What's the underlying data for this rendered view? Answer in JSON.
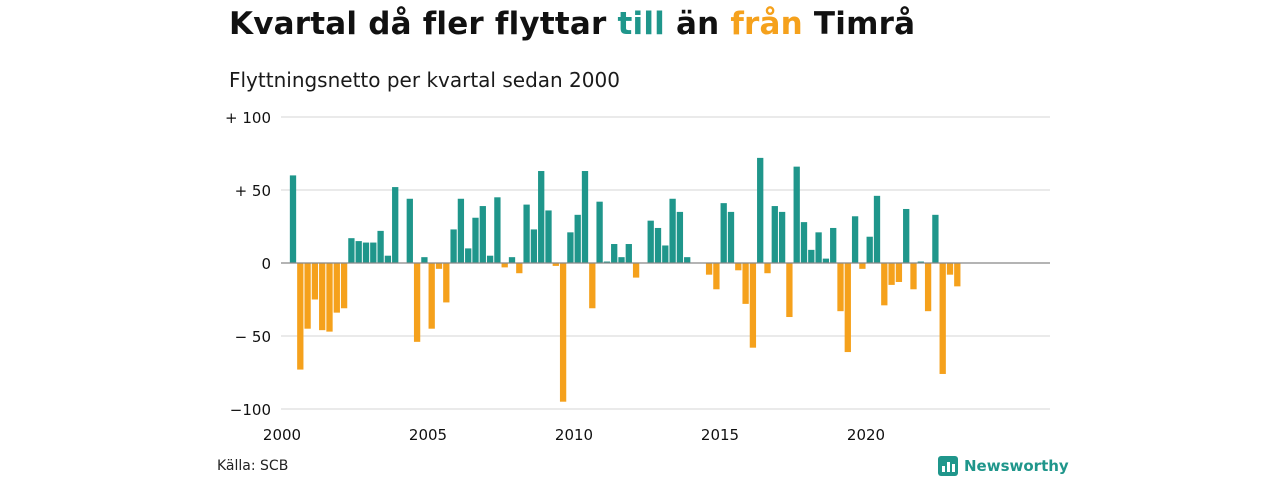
{
  "title": {
    "part1": "Kvartal då fler flyttar ",
    "till": "till",
    "part2": " än ",
    "fran": "från",
    "part3": " Timrå"
  },
  "subtitle": "Flyttningsnetto per kvartal sedan 2000",
  "source": "Källa: SCB",
  "brand": "Newsworthy",
  "brand_icon": "bar-chart-logo-icon",
  "colors": {
    "positive": "#1f968b",
    "negative": "#f5a11c",
    "grid": "#dddddd",
    "zero": "#888888",
    "text": "#111111"
  },
  "chart_data": {
    "type": "bar",
    "title": "Kvartal då fler flyttar till än från Timrå",
    "subtitle": "Flyttningsnetto per kvartal sedan 2000",
    "xlabel": "",
    "ylabel": "",
    "ylim": [
      -100,
      100
    ],
    "y_ticks": [
      {
        "value": 100,
        "label": "+ 100"
      },
      {
        "value": 50,
        "label": "+  50"
      },
      {
        "value": 0,
        "label": "0"
      },
      {
        "value": -50,
        "label": "− 50"
      },
      {
        "value": -100,
        "label": "−100"
      }
    ],
    "x_ticks": [
      "2000",
      "2005",
      "2010",
      "2015",
      "2020"
    ],
    "grid": true,
    "start": "2000 Q1",
    "frequency": "quarterly",
    "values": [
      60,
      -73,
      -45,
      -25,
      -46,
      -47,
      -34,
      -31,
      17,
      15,
      14,
      14,
      22,
      5,
      52,
      0,
      44,
      -54,
      4,
      -45,
      -4,
      -27,
      23,
      44,
      10,
      31,
      39,
      5,
      45,
      -3,
      4,
      -7,
      40,
      23,
      63,
      36,
      -2,
      -95,
      21,
      33,
      63,
      -31,
      42,
      1,
      13,
      4,
      13,
      -10,
      0,
      29,
      24,
      12,
      44,
      35,
      4,
      0,
      0,
      -8,
      -18,
      41,
      35,
      -5,
      -28,
      -58,
      72,
      -7,
      39,
      35,
      -37,
      66,
      28,
      9,
      21,
      3,
      24,
      -33,
      -61,
      32,
      -4,
      18,
      46,
      -29,
      -15,
      -13,
      37,
      -18,
      1,
      -33,
      33,
      -76,
      -8,
      -16
    ]
  }
}
